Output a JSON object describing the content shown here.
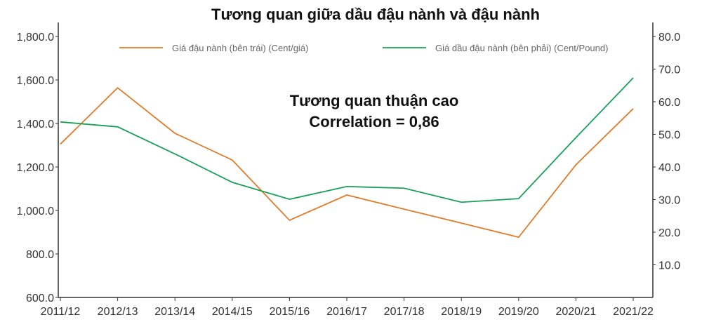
{
  "chart_data": {
    "type": "line",
    "title": "Tương quan giữa dầu đậu nành và đậu nành",
    "annotations": [
      "Tương quan thuận cao",
      "Correlation = 0,86"
    ],
    "categories": [
      "2011/12",
      "2012/13",
      "2013/14",
      "2014/15",
      "2015/16",
      "2016/17",
      "2017/18",
      "2018/19",
      "2019/20",
      "2020/21",
      "2021/22"
    ],
    "y_left": {
      "ylim": [
        600,
        1800
      ],
      "ticks": [
        "600.0",
        "800.0",
        "1,000.0",
        "1,200.0",
        "1,400.0",
        "1,600.0",
        "1,800.0"
      ],
      "tick_values": [
        600,
        800,
        1000,
        1200,
        1400,
        1600,
        1800
      ]
    },
    "y_right": {
      "ylim": [
        0,
        80
      ],
      "ticks": [
        "10.0",
        "20.0",
        "30.0",
        "40.0",
        "50.0",
        "60.0",
        "70.0",
        "80.0"
      ],
      "tick_values": [
        10,
        20,
        30,
        40,
        50,
        60,
        70,
        80
      ]
    },
    "grid": false,
    "legend_placement": "top",
    "series": [
      {
        "name": "Giá đậu nành (bên trái) (Cent/giá)",
        "axis": "left",
        "color": "#e07b2a",
        "values": [
          1305,
          1564,
          1355,
          1232,
          955,
          1071,
          1006,
          942,
          877,
          1210,
          1468
        ]
      },
      {
        "name": "Giá dầu đậu nành (bên phải) (Cent/Pound)",
        "axis": "right",
        "color": "#1aa05a",
        "values": [
          53.8,
          52.3,
          44.0,
          35.3,
          30.1,
          34.0,
          33.5,
          29.2,
          30.3,
          49.0,
          67.3
        ]
      }
    ]
  }
}
